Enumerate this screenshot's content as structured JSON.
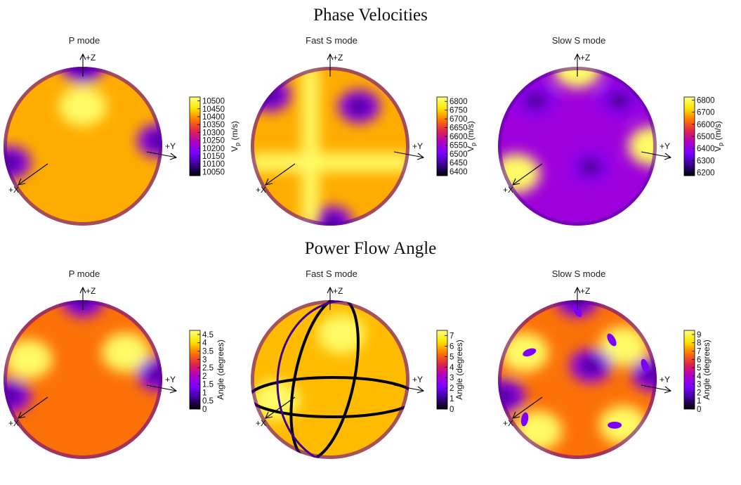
{
  "headings": {
    "phase": "Phase Velocities",
    "power": "Power Flow Angle"
  },
  "colors": {
    "colormap": [
      "#000000",
      "#3c0094",
      "#7a00ff",
      "#b000c8",
      "#e0234a",
      "#ff7a00",
      "#ffe600",
      "#ffff80"
    ],
    "background": "#ffffff"
  },
  "chart_data": [
    {
      "type": "heatmap",
      "group": "phase",
      "title": "P mode",
      "axes": {
        "x": "+X",
        "y": "+Y",
        "z": "+Z"
      },
      "colorbar": {
        "label_main": "V",
        "label_sub": "p",
        "label_tail": " (m/s)",
        "ticks": [
          "10500",
          "10450",
          "10400",
          "10350",
          "10300",
          "10250",
          "10200",
          "10150",
          "10100",
          "10050"
        ],
        "range": [
          10025,
          10525
        ]
      },
      "lows": [
        {
          "lon": 0,
          "lat": 88
        },
        {
          "lon": -70,
          "lat": -12
        },
        {
          "lon": 72,
          "lat": 4
        }
      ],
      "highs": [
        {
          "lon": 0,
          "lat": 30
        }
      ]
    },
    {
      "type": "heatmap",
      "group": "phase",
      "title": "Fast S mode",
      "axes": {
        "x": "+X",
        "y": "+Y",
        "z": "+Z"
      },
      "colorbar": {
        "label_main": "V",
        "label_sub": "p",
        "label_tail": " (m/s)",
        "ticks": [
          "6800",
          "6750",
          "6700",
          "6650",
          "6600",
          "6550",
          "6500",
          "6450",
          "6400"
        ],
        "range": [
          6375,
          6825
        ]
      },
      "lows": [
        {
          "lon": 25,
          "lat": 30
        },
        {
          "lon": 5,
          "lat": -75
        },
        {
          "lon": -82,
          "lat": 40
        }
      ],
      "highs": []
    },
    {
      "type": "heatmap",
      "group": "phase",
      "title": "Slow S mode",
      "axes": {
        "x": "+X",
        "y": "+Y",
        "z": "+Z"
      },
      "colorbar": {
        "label_main": "V",
        "label_sub": "p",
        "label_tail": " (m/s)",
        "ticks": [
          "6800",
          "6700",
          "6600",
          "6500",
          "6400",
          "6300",
          "6200"
        ],
        "range": [
          6175,
          6825
        ]
      },
      "lows": [
        {
          "lon": 10,
          "lat": -15
        },
        {
          "lon": -40,
          "lat": 35
        },
        {
          "lon": 40,
          "lat": 35
        }
      ],
      "highs": [
        {
          "lon": 0,
          "lat": 78
        },
        {
          "lon": -55,
          "lat": -20
        },
        {
          "lon": 70,
          "lat": 0
        }
      ]
    },
    {
      "type": "heatmap",
      "group": "power",
      "title": "P mode",
      "axes": {
        "x": "+X",
        "y": "+Y",
        "z": "+Z"
      },
      "colorbar": {
        "label_main": "Angle (degrees)",
        "label_sub": "",
        "label_tail": "",
        "ticks": [
          "4.5",
          "4",
          "3.5",
          "3",
          "2.5",
          "2",
          "1.5",
          "1",
          "0.5",
          "0"
        ],
        "range": [
          0,
          4.75
        ]
      },
      "lows": [
        {
          "lon": 0,
          "lat": 88
        },
        {
          "lon": -70,
          "lat": -12
        },
        {
          "lon": 72,
          "lat": 4
        }
      ],
      "highs": [
        {
          "lon": -45,
          "lat": 15
        },
        {
          "lon": 35,
          "lat": 20
        }
      ]
    },
    {
      "type": "heatmap",
      "group": "power",
      "title": "Fast S mode",
      "axes": {
        "x": "+X",
        "y": "+Y",
        "z": "+Z"
      },
      "colorbar": {
        "label_main": "Angle (degrees)",
        "label_sub": "",
        "label_tail": "",
        "ticks": [
          "7",
          "6",
          "5",
          "4",
          "3",
          "2",
          "1",
          "0"
        ],
        "range": [
          0,
          7.5
        ]
      },
      "lows": [],
      "highs": [
        {
          "lon": 10,
          "lat": 35
        },
        {
          "lon": -45,
          "lat": -15
        }
      ]
    },
    {
      "type": "heatmap",
      "group": "power",
      "title": "Slow S mode",
      "axes": {
        "x": "+X",
        "y": "+Y",
        "z": "+Z"
      },
      "colorbar": {
        "label_main": "Angle (degrees)",
        "label_sub": "",
        "label_tail": "",
        "ticks": [
          "9",
          "8",
          "7",
          "6",
          "5",
          "4",
          "3",
          "2",
          "1",
          "0"
        ],
        "range": [
          0,
          9.5
        ]
      },
      "lows": [
        {
          "lon": 0,
          "lat": 88
        },
        {
          "lon": -70,
          "lat": -12
        },
        {
          "lon": 72,
          "lat": 4
        },
        {
          "lon": 10,
          "lat": 10
        }
      ],
      "highs": [
        {
          "lon": -45,
          "lat": 20
        },
        {
          "lon": 40,
          "lat": 25
        },
        {
          "lon": -40,
          "lat": -40
        },
        {
          "lon": 45,
          "lat": -35
        }
      ]
    }
  ]
}
